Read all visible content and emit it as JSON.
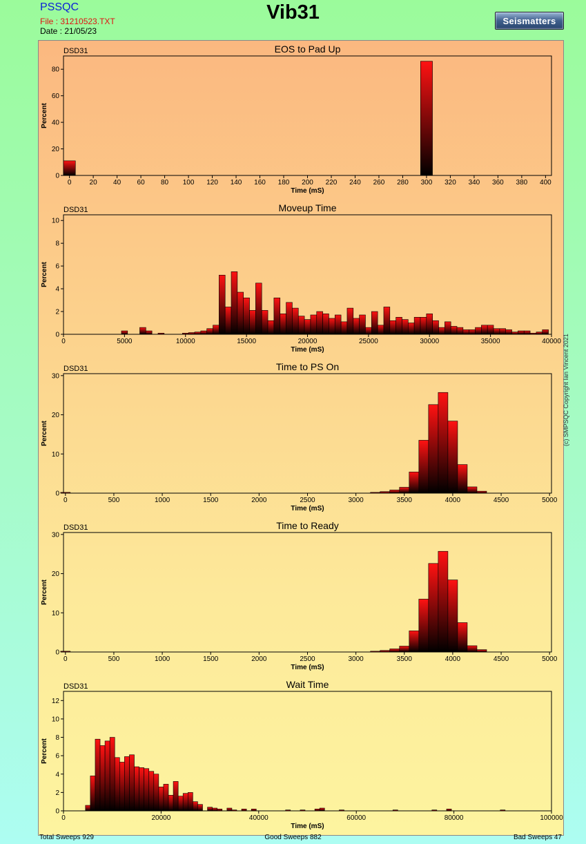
{
  "header": {
    "app_name": "PSSQC",
    "file": "File : 31210523.TXT",
    "date": "Date : 21/05/23",
    "title": "Vib31",
    "logo_text": "Seismatters"
  },
  "copyright": "(c) SMPSQC Copyright Ian Vincent 2021",
  "footer": {
    "total": "Total Sweeps 929",
    "good": "Good Sweeps 882",
    "bad": "Bad Sweeps 47"
  },
  "colors": {
    "bar_top": "#ff1010",
    "bar_bottom": "#000000",
    "panel_top": "#fbb880",
    "panel_bottom": "#fdf49f",
    "page_top": "#9bfb9b",
    "page_bottom": "#adfdf2"
  },
  "chart_data": [
    {
      "type": "bar",
      "tag": "DSD31",
      "title": "EOS to Pad Up",
      "xlabel": "Time (mS)",
      "ylabel": "Percent",
      "xlim": [
        -5,
        405
      ],
      "ylim": [
        0,
        90
      ],
      "xticks": [
        0,
        20,
        40,
        60,
        80,
        100,
        120,
        140,
        160,
        180,
        200,
        220,
        240,
        260,
        280,
        300,
        320,
        340,
        360,
        380,
        400
      ],
      "yticks": [
        0,
        20,
        40,
        60,
        80
      ],
      "bar_width": 10,
      "bars": [
        [
          0,
          11
        ],
        [
          300,
          86
        ]
      ]
    },
    {
      "type": "bar",
      "tag": "DSD31",
      "title": "Moveup Time",
      "xlabel": "Time (mS)",
      "ylabel": "Percent",
      "xlim": [
        0,
        40000
      ],
      "ylim": [
        0,
        10.5
      ],
      "xticks": [
        0,
        5000,
        10000,
        15000,
        20000,
        25000,
        30000,
        35000,
        40000
      ],
      "yticks": [
        0,
        2,
        4,
        6,
        8,
        10
      ],
      "bar_width": 500,
      "bars": [
        [
          5000,
          0.3
        ],
        [
          6500,
          0.6
        ],
        [
          7000,
          0.3
        ],
        [
          8000,
          0.1
        ],
        [
          10000,
          0.1
        ],
        [
          10500,
          0.15
        ],
        [
          11000,
          0.2
        ],
        [
          11500,
          0.3
        ],
        [
          12000,
          0.5
        ],
        [
          12500,
          0.8
        ],
        [
          13000,
          5.2
        ],
        [
          13500,
          2.4
        ],
        [
          14000,
          5.5
        ],
        [
          14500,
          3.7
        ],
        [
          15000,
          3.2
        ],
        [
          15500,
          2.1
        ],
        [
          16000,
          4.5
        ],
        [
          16500,
          2.1
        ],
        [
          17000,
          1.2
        ],
        [
          17500,
          3.2
        ],
        [
          18000,
          1.8
        ],
        [
          18500,
          2.8
        ],
        [
          19000,
          2.3
        ],
        [
          19500,
          1.6
        ],
        [
          20000,
          1.3
        ],
        [
          20500,
          1.7
        ],
        [
          21000,
          2.0
        ],
        [
          21500,
          1.8
        ],
        [
          22000,
          1.4
        ],
        [
          22500,
          1.7
        ],
        [
          23000,
          1.1
        ],
        [
          23500,
          2.3
        ],
        [
          24000,
          1.4
        ],
        [
          24500,
          1.7
        ],
        [
          25000,
          0.6
        ],
        [
          25500,
          2.0
        ],
        [
          26000,
          0.8
        ],
        [
          26500,
          2.4
        ],
        [
          27000,
          1.2
        ],
        [
          27500,
          1.5
        ],
        [
          28000,
          1.3
        ],
        [
          28500,
          1.0
        ],
        [
          29000,
          1.5
        ],
        [
          29500,
          1.5
        ],
        [
          30000,
          1.8
        ],
        [
          30500,
          1.2
        ],
        [
          31000,
          0.6
        ],
        [
          31500,
          1.1
        ],
        [
          32000,
          0.7
        ],
        [
          32500,
          0.6
        ],
        [
          33000,
          0.4
        ],
        [
          33500,
          0.4
        ],
        [
          34000,
          0.6
        ],
        [
          34500,
          0.8
        ],
        [
          35000,
          0.8
        ],
        [
          35500,
          0.5
        ],
        [
          36000,
          0.5
        ],
        [
          36500,
          0.4
        ],
        [
          37000,
          0.2
        ],
        [
          37500,
          0.3
        ],
        [
          38000,
          0.3
        ],
        [
          38500,
          0.1
        ],
        [
          39000,
          0.2
        ],
        [
          39500,
          0.4
        ]
      ]
    },
    {
      "type": "bar",
      "tag": "DSD31",
      "title": "Time to PS On",
      "xlabel": "Time (mS)",
      "ylabel": "Percent",
      "xlim": [
        -20,
        5020
      ],
      "ylim": [
        0,
        30.5
      ],
      "xticks": [
        0,
        500,
        1000,
        1500,
        2000,
        2500,
        3000,
        3500,
        4000,
        4500,
        5000
      ],
      "yticks": [
        0,
        10,
        20,
        30
      ],
      "bar_width": 100,
      "bars": [
        [
          0,
          0.2
        ],
        [
          3200,
          0.2
        ],
        [
          3300,
          0.4
        ],
        [
          3400,
          0.8
        ],
        [
          3500,
          1.5
        ],
        [
          3600,
          5.4
        ],
        [
          3700,
          13.5
        ],
        [
          3800,
          22.6
        ],
        [
          3900,
          25.7
        ],
        [
          4000,
          18.4
        ],
        [
          4100,
          7.3
        ],
        [
          4200,
          1.6
        ],
        [
          4300,
          0.5
        ]
      ]
    },
    {
      "type": "bar",
      "tag": "DSD31",
      "title": "Time to Ready",
      "xlabel": "Time (mS)",
      "ylabel": "Percent",
      "xlim": [
        -20,
        5020
      ],
      "ylim": [
        0,
        30.5
      ],
      "xticks": [
        0,
        500,
        1000,
        1500,
        2000,
        2500,
        3000,
        3500,
        4000,
        4500,
        5000
      ],
      "yticks": [
        0,
        10,
        20,
        30
      ],
      "bar_width": 100,
      "bars": [
        [
          0,
          0.2
        ],
        [
          3200,
          0.2
        ],
        [
          3300,
          0.4
        ],
        [
          3400,
          0.8
        ],
        [
          3500,
          1.5
        ],
        [
          3600,
          5.4
        ],
        [
          3700,
          13.5
        ],
        [
          3800,
          22.6
        ],
        [
          3900,
          25.7
        ],
        [
          4000,
          18.4
        ],
        [
          4100,
          7.5
        ],
        [
          4200,
          1.6
        ],
        [
          4300,
          0.6
        ]
      ]
    },
    {
      "type": "bar",
      "tag": "DSD31",
      "title": "Wait Time",
      "xlabel": "Time (mS)",
      "ylabel": "Percent",
      "xlim": [
        0,
        100000
      ],
      "ylim": [
        0,
        13
      ],
      "xticks": [
        0,
        20000,
        40000,
        60000,
        80000,
        100000
      ],
      "yticks": [
        0,
        2,
        4,
        6,
        8,
        10,
        12
      ],
      "bar_width": 1000,
      "bars": [
        [
          5000,
          0.6
        ],
        [
          6000,
          3.8
        ],
        [
          7000,
          7.8
        ],
        [
          8000,
          7.1
        ],
        [
          9000,
          7.6
        ],
        [
          10000,
          8.0
        ],
        [
          11000,
          5.8
        ],
        [
          12000,
          5.3
        ],
        [
          13000,
          5.9
        ],
        [
          14000,
          6.1
        ],
        [
          15000,
          4.8
        ],
        [
          16000,
          4.7
        ],
        [
          17000,
          4.6
        ],
        [
          18000,
          4.3
        ],
        [
          19000,
          4.0
        ],
        [
          20000,
          2.6
        ],
        [
          21000,
          2.9
        ],
        [
          22000,
          1.7
        ],
        [
          23000,
          3.2
        ],
        [
          24000,
          1.6
        ],
        [
          25000,
          1.9
        ],
        [
          26000,
          2.0
        ],
        [
          27000,
          1.0
        ],
        [
          28000,
          0.7
        ],
        [
          30000,
          0.4
        ],
        [
          31000,
          0.3
        ],
        [
          32000,
          0.2
        ],
        [
          34000,
          0.3
        ],
        [
          35000,
          0.1
        ],
        [
          37000,
          0.2
        ],
        [
          39000,
          0.2
        ],
        [
          46000,
          0.1
        ],
        [
          49000,
          0.1
        ],
        [
          52000,
          0.2
        ],
        [
          53000,
          0.3
        ],
        [
          57000,
          0.1
        ],
        [
          68000,
          0.1
        ],
        [
          76000,
          0.1
        ],
        [
          79000,
          0.2
        ],
        [
          90000,
          0.1
        ]
      ]
    }
  ]
}
